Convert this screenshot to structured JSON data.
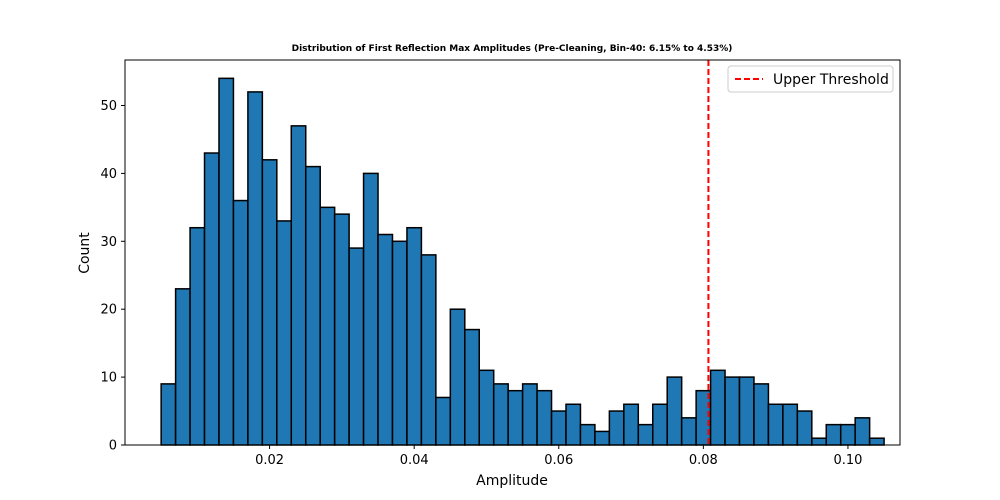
{
  "chart_data": {
    "type": "bar",
    "title": "Distribution of First Reflection Max Amplitudes (Pre-Cleaning, Bin-40: 6.15% to 4.53%)",
    "xlabel": "Amplitude",
    "ylabel": "Count",
    "xlim": [
      0.0,
      0.1072
    ],
    "ylim": [
      0,
      56.7
    ],
    "xticks": [
      0.02,
      0.04,
      0.06,
      0.08,
      0.1
    ],
    "xtick_labels": [
      "0.02",
      "0.04",
      "0.06",
      "0.08",
      "0.10"
    ],
    "yticks": [
      0,
      10,
      20,
      30,
      40,
      50
    ],
    "ytick_labels": [
      "0",
      "10",
      "20",
      "30",
      "40",
      "50"
    ],
    "bin_start": 0.005,
    "bin_width": 0.002,
    "values": [
      9,
      23,
      32,
      43,
      54,
      36,
      52,
      42,
      33,
      47,
      41,
      35,
      34,
      29,
      40,
      31,
      30,
      32,
      28,
      7,
      20,
      17,
      11,
      9,
      8,
      9,
      8,
      5,
      6,
      3,
      2,
      5,
      6,
      3,
      6,
      10,
      4,
      8,
      11,
      10,
      10,
      9,
      6,
      6,
      5,
      1,
      3,
      3,
      4,
      1
    ],
    "bar_color": "#1f77b4",
    "bar_edge_color": "#000000",
    "threshold": {
      "label": "Upper Threshold",
      "x": 0.0807,
      "color": "#ff0000",
      "style": "dashed"
    },
    "legend": {
      "position": "top-right",
      "entries": [
        "Upper Threshold"
      ]
    },
    "grid": false
  }
}
